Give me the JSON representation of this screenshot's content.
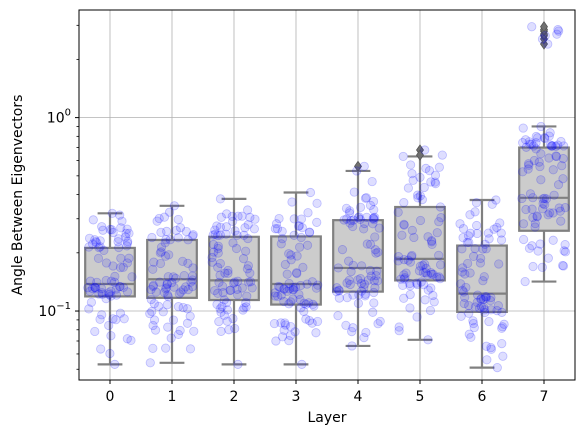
{
  "chart_data": {
    "type": "box",
    "title": "",
    "xlabel": "Layer",
    "ylabel": "Angle Between Eigenvectors",
    "yscale": "log",
    "ylim": [
      0.044,
      3.6
    ],
    "y_ticks": [
      {
        "value": 1.0,
        "label_base": "10",
        "label_exp": "0"
      },
      {
        "value": 0.1,
        "label_base": "10",
        "label_exp": "−1"
      }
    ],
    "grid": true,
    "categories": [
      "0",
      "1",
      "2",
      "3",
      "4",
      "5",
      "6",
      "7"
    ],
    "boxes": [
      {
        "category": "0",
        "whisker_low": 0.053,
        "q1": 0.119,
        "median": 0.138,
        "q3": 0.212,
        "whisker_high": 0.32,
        "outliers": []
      },
      {
        "category": "1",
        "whisker_low": 0.054,
        "q1": 0.117,
        "median": 0.146,
        "q3": 0.233,
        "whisker_high": 0.35,
        "outliers": []
      },
      {
        "category": "2",
        "whisker_low": 0.053,
        "q1": 0.114,
        "median": 0.144,
        "q3": 0.242,
        "whisker_high": 0.38,
        "outliers": []
      },
      {
        "category": "3",
        "whisker_low": 0.053,
        "q1": 0.108,
        "median": 0.138,
        "q3": 0.243,
        "whisker_high": 0.41,
        "outliers": []
      },
      {
        "category": "4",
        "whisker_low": 0.066,
        "q1": 0.126,
        "median": 0.167,
        "q3": 0.295,
        "whisker_high": 0.53,
        "outliers": [
          0.56
        ]
      },
      {
        "category": "5",
        "whisker_low": 0.071,
        "q1": 0.144,
        "median": 0.186,
        "q3": 0.345,
        "whisker_high": 0.63,
        "outliers": [
          0.68,
          0.64
        ]
      },
      {
        "category": "6",
        "whisker_low": 0.051,
        "q1": 0.099,
        "median": 0.123,
        "q3": 0.218,
        "whisker_high": 0.375,
        "outliers": []
      },
      {
        "category": "7",
        "whisker_low": 0.142,
        "q1": 0.26,
        "median": 0.385,
        "q3": 0.7,
        "whisker_high": 0.9,
        "outliers": [
          2.4,
          2.55,
          2.65,
          2.7,
          2.8,
          2.85,
          2.95
        ]
      }
    ],
    "scatter": {
      "points_per_category": 80,
      "jitter": 0.4,
      "color": "#0000ff",
      "alpha": 0.13
    },
    "colors": {
      "box_fill": "#cccccc",
      "box_edge": "#808080",
      "grid": "#b0b0b0",
      "axes": "#000000"
    }
  }
}
